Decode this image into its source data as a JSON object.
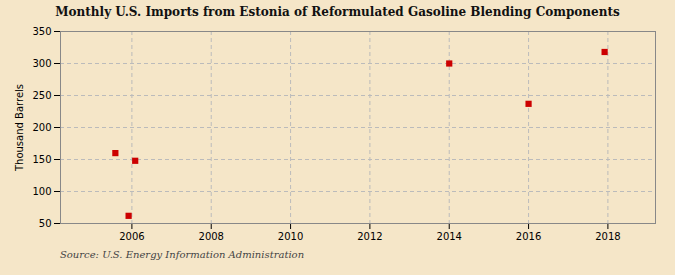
{
  "chart_data": {
    "type": "scatter",
    "title": "Monthly U.S. Imports from Estonia of Reformulated Gasoline Blending Components",
    "ylabel": "Thousand Barrels",
    "source": "Source: U.S. Energy Information Administration",
    "x": [
      2005.583,
      2005.917,
      2006.083,
      2014.0,
      2016.0,
      2017.917
    ],
    "values": [
      160,
      62,
      148,
      300,
      237,
      318
    ],
    "color": "#cc0000",
    "marker": "square",
    "xlim": [
      2004.2,
      2019.2
    ],
    "xticks": [
      2006,
      2008,
      2010,
      2012,
      2014,
      2016,
      2018
    ],
    "ylim": [
      50,
      350
    ],
    "yticks": [
      50,
      100,
      150,
      200,
      250,
      300,
      350
    ],
    "grid": true
  }
}
